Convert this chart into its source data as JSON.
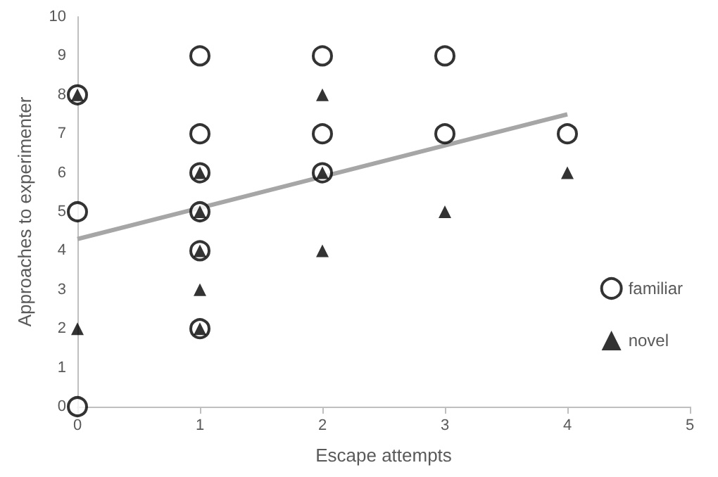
{
  "chart_data": {
    "type": "scatter",
    "xlabel": "Escape attempts",
    "ylabel": "Approaches to experimenter",
    "xlim": [
      0,
      5
    ],
    "xticks": [
      0,
      1,
      2,
      3,
      4,
      5
    ],
    "ylim": [
      0,
      10
    ],
    "yticks": [
      0,
      1,
      2,
      3,
      4,
      5,
      6,
      7,
      8,
      9,
      10
    ],
    "grid": false,
    "legend": "bottom right",
    "series": [
      {
        "name": "familiar",
        "color": "#000000",
        "marker": "circle",
        "x": [
          0,
          0,
          0,
          1,
          1,
          1,
          1,
          1,
          1,
          2,
          2,
          2,
          3,
          3,
          4
        ],
        "values": [
          8,
          5,
          0,
          9,
          7,
          6,
          5,
          4,
          2,
          9,
          7,
          6,
          9,
          7,
          7
        ]
      },
      {
        "name": "novel",
        "color": "#000000",
        "marker": "triangle",
        "x": [
          0,
          0,
          1,
          1,
          1,
          1,
          1,
          2,
          2,
          2,
          3,
          4
        ],
        "values": [
          8,
          2,
          6,
          5,
          4,
          3,
          2,
          8,
          6,
          4,
          5,
          6
        ]
      },
      {
        "type": "line",
        "color": "#a6a6a6",
        "marker": "none",
        "x": [
          0,
          4
        ],
        "values": [
          4.3,
          7.5
        ]
      }
    ]
  }
}
